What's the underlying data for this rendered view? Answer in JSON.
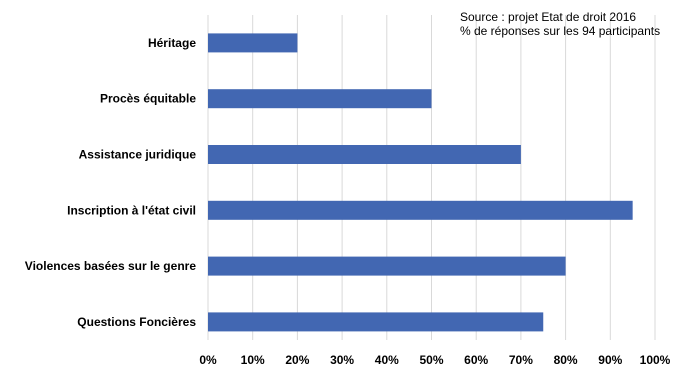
{
  "annotation": {
    "line1": "Source : projet Etat de droit 2016",
    "line2": "% de réponses sur les 94 participants"
  },
  "chart_data": {
    "type": "bar",
    "orientation": "horizontal",
    "categories": [
      "Héritage",
      "Procès équitable",
      "Assistance juridique",
      "Inscription à l'état civil",
      "Violences basées sur le genre",
      "Questions Foncières"
    ],
    "values": [
      20,
      50,
      70,
      95,
      80,
      75
    ],
    "unit": "%",
    "xlim": [
      0,
      100
    ],
    "x_ticks": [
      0,
      10,
      20,
      30,
      40,
      50,
      60,
      70,
      80,
      90,
      100
    ],
    "x_tick_labels": [
      "0%",
      "10%",
      "20%",
      "30%",
      "40%",
      "50%",
      "60%",
      "70%",
      "80%",
      "90%",
      "100%"
    ],
    "title": "",
    "xlabel": "",
    "ylabel": "",
    "grid": true,
    "legend": "none",
    "bar_color": "#4267B2",
    "grid_color": "#D9D9D9"
  }
}
